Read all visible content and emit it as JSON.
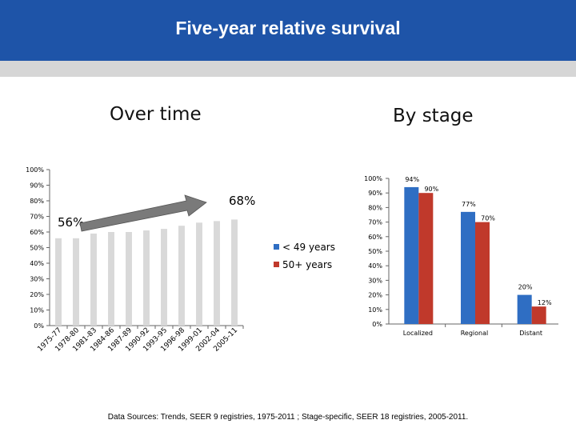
{
  "header": {
    "title": "Five-year relative survival"
  },
  "sections": {
    "left_heading": "Over time",
    "right_heading": "By stage"
  },
  "footnote": "Data Sources: Trends, SEER 9 registries, 1975-2011 ; Stage-specific, SEER 18 registries, 2005-2011.",
  "colors": {
    "header_blue": "#1e54a8",
    "under49": "#2f6ec3",
    "over50": "#c0392b",
    "bar_gray": "#d9d9d9",
    "arrow_gray": "#7a7a7a"
  },
  "chart_data": [
    {
      "type": "bar",
      "title": "Over time",
      "categories": [
        "1975-77",
        "1978-80",
        "1981-83",
        "1984-86",
        "1987-89",
        "1990-92",
        "1993-95",
        "1996-98",
        "1999-01",
        "2002-04",
        "2005-11"
      ],
      "series": [
        {
          "values": [
            56,
            56,
            59,
            60,
            60,
            61,
            62,
            64,
            66,
            67,
            68
          ]
        }
      ],
      "ylim": [
        0,
        100
      ],
      "yticks": [
        "0%",
        "10%",
        "20%",
        "30%",
        "40%",
        "50%",
        "60%",
        "70%",
        "80%",
        "90%",
        "100%"
      ],
      "annotations": [
        {
          "text": "56%"
        },
        {
          "text": "68%"
        }
      ],
      "grid": false
    },
    {
      "type": "bar",
      "title": "By stage",
      "categories": [
        "Localized",
        "Regional",
        "Distant"
      ],
      "series": [
        {
          "name": "< 49 years",
          "values": [
            94,
            77,
            20
          ],
          "labels": [
            "94%",
            "77%",
            "20%"
          ]
        },
        {
          "name": "50+ years",
          "values": [
            90,
            70,
            12
          ],
          "labels": [
            "90%",
            "70%",
            "12%"
          ]
        }
      ],
      "ylim": [
        0,
        100
      ],
      "yticks": [
        "0%",
        "10%",
        "20%",
        "30%",
        "40%",
        "50%",
        "60%",
        "70%",
        "80%",
        "90%",
        "100%"
      ],
      "legend": "left",
      "grid": false
    }
  ]
}
